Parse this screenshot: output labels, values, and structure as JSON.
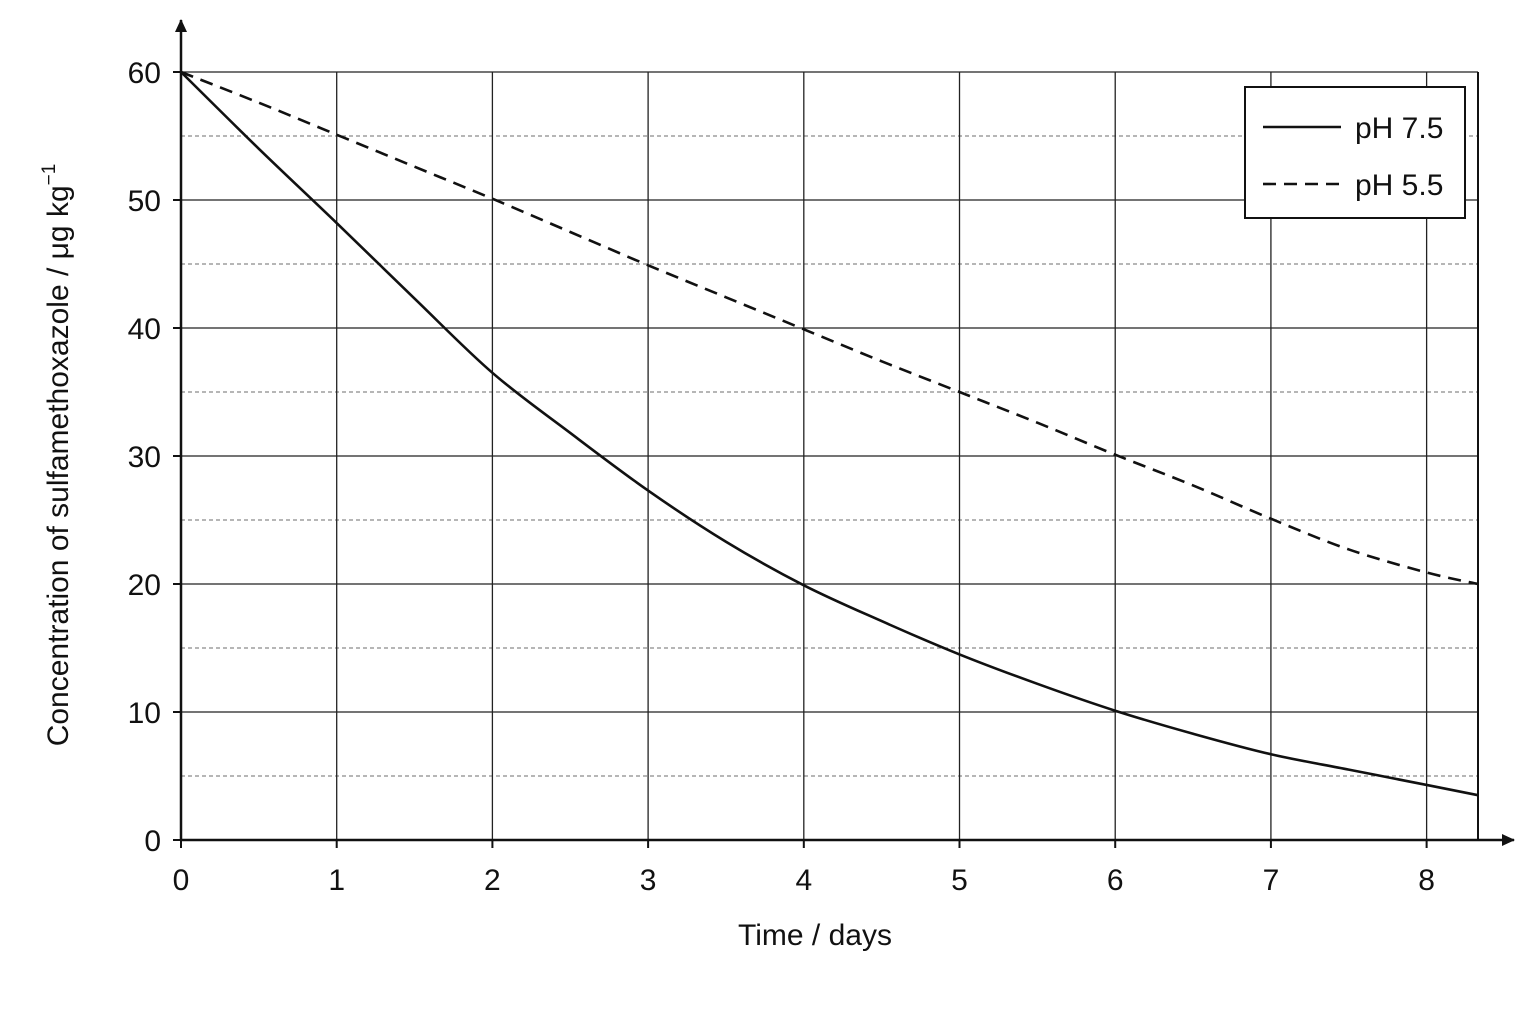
{
  "chart_data": {
    "type": "line",
    "title": "",
    "xlabel": "Time / days",
    "ylabel_main": "Concentration of sulfamethoxazole / μg kg",
    "ylabel_sup": "−1",
    "xlim": [
      0,
      8.33
    ],
    "ylim": [
      0,
      60
    ],
    "xticks": [
      "0",
      "1",
      "2",
      "3",
      "4",
      "5",
      "6",
      "7",
      "8"
    ],
    "yticks": [
      "0",
      "10",
      "20",
      "30",
      "40",
      "50",
      "60"
    ],
    "major_grid": true,
    "minor_grid_y": "dashed at 5-unit intervals",
    "legend_position": "top-right",
    "series": [
      {
        "name": "pH 7.5",
        "style": "solid",
        "x": [
          0,
          0.5,
          1,
          1.5,
          2,
          2.5,
          3,
          3.5,
          4,
          4.5,
          5,
          5.5,
          6,
          6.5,
          7,
          7.5,
          8,
          8.33
        ],
        "y": [
          60,
          54,
          48.2,
          42.3,
          36.5,
          31.8,
          27.3,
          23.3,
          19.9,
          17.1,
          14.5,
          12.2,
          10.1,
          8.3,
          6.7,
          5.5,
          4.3,
          3.5
        ]
      },
      {
        "name": "pH 5.5",
        "style": "dashed",
        "x": [
          0,
          0.5,
          1,
          1.5,
          2,
          2.5,
          3,
          3.5,
          4,
          4.5,
          5,
          5.5,
          6,
          6.5,
          7,
          7.5,
          8,
          8.33
        ],
        "y": [
          60,
          57.6,
          55.1,
          52.6,
          50.1,
          47.5,
          44.9,
          42.4,
          39.9,
          37.4,
          35.0,
          32.6,
          30.1,
          27.7,
          25.1,
          22.7,
          20.9,
          20.0
        ]
      }
    ]
  }
}
